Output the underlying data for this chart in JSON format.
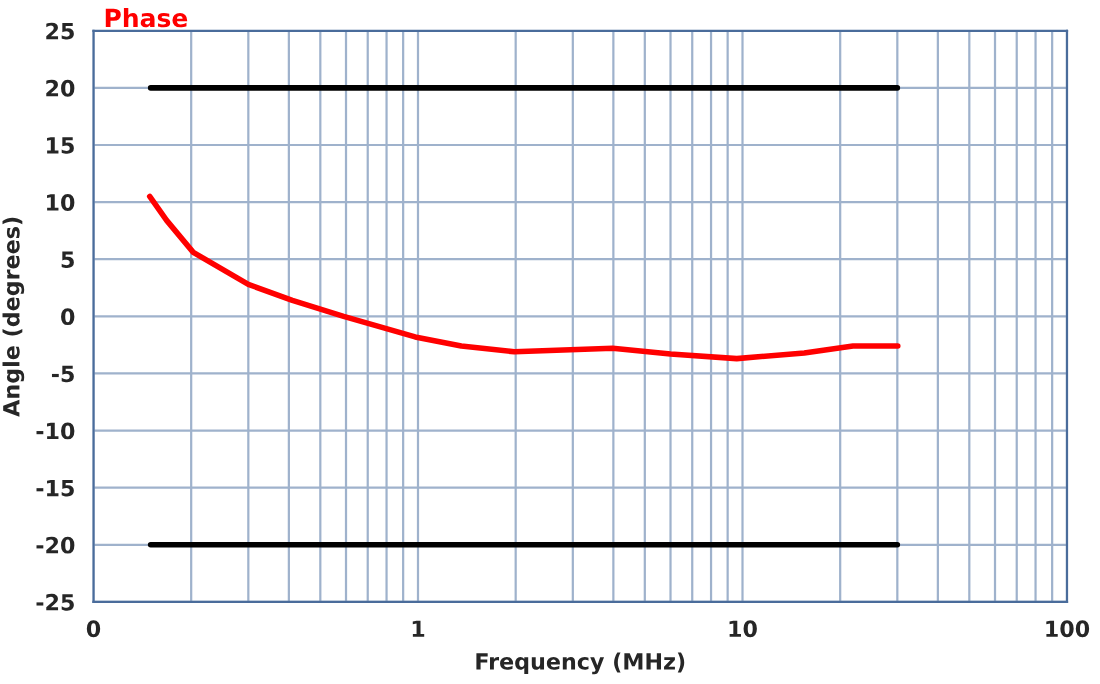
{
  "chart_data": {
    "type": "line",
    "xlabel": "Frequency (MHz)",
    "ylabel": "Angle (degrees)",
    "series": [
      {
        "name": "Phase",
        "color": "#ff0000",
        "x": [
          0.149,
          0.168,
          0.203,
          0.3,
          0.41,
          0.59,
          0.98,
          1.36,
          1.98,
          3.98,
          6.0,
          9.6,
          15.5,
          21.9,
          30.1
        ],
        "values": [
          10.5,
          8.4,
          5.6,
          2.8,
          1.4,
          0.0,
          -1.8,
          -2.6,
          -3.1,
          -2.8,
          -3.3,
          -3.7,
          -3.2,
          -2.6,
          -2.6
        ]
      },
      {
        "color": "#000000",
        "x": [
          0.15,
          30
        ],
        "values": [
          20,
          20
        ]
      },
      {
        "color": "#000000",
        "x": [
          0.15,
          30
        ],
        "values": [
          -20,
          -20
        ]
      }
    ],
    "log": "x",
    "xlim": [
      0.1,
      100
    ],
    "xticks": [
      {
        "value": 0.1,
        "label": "0"
      },
      1,
      10,
      100
    ],
    "ylim": [
      -25,
      25
    ],
    "yticks": [
      -25,
      -20,
      -15,
      -10,
      -5,
      0,
      5,
      10,
      15,
      20,
      25
    ],
    "grid": true,
    "legend": "top left"
  }
}
